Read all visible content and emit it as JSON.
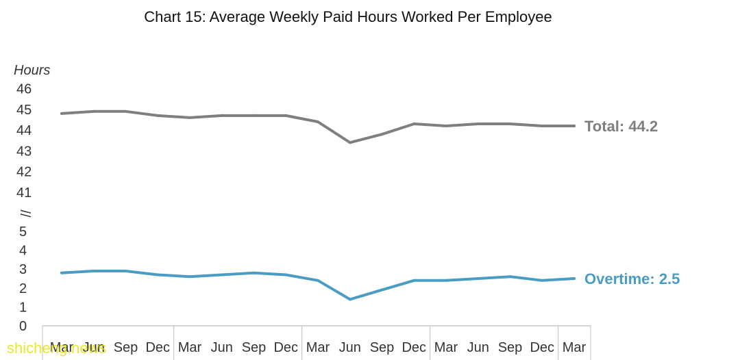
{
  "chart_data": {
    "type": "line",
    "title": "Chart 15: Average Weekly Paid Hours Worked Per Employee",
    "ylabel": "Hours",
    "xlabel": "",
    "axis_break": true,
    "y_ticks_lower": [
      "0",
      "1",
      "2",
      "3",
      "4",
      "5"
    ],
    "y_ticks_upper": [
      "41",
      "42",
      "43",
      "44",
      "45",
      "46"
    ],
    "y_break_marker": "//",
    "x_categories": [
      "Mar",
      "Jun",
      "Sep",
      "Dec",
      "Mar",
      "Jun",
      "Sep",
      "Dec",
      "Mar",
      "Jun",
      "Sep",
      "Dec",
      "Mar",
      "Jun",
      "Sep",
      "Dec",
      "Mar"
    ],
    "series": [
      {
        "name": "Total",
        "label": "Total: 44.2",
        "color": "#7f7f7f",
        "values": [
          44.8,
          44.9,
          44.9,
          44.7,
          44.6,
          44.7,
          44.7,
          44.7,
          44.4,
          43.4,
          43.8,
          44.3,
          44.2,
          44.3,
          44.3,
          44.2,
          44.2
        ]
      },
      {
        "name": "Overtime",
        "label": "Overtime: 2.5",
        "color": "#4a9cc4",
        "values": [
          2.8,
          2.9,
          2.9,
          2.7,
          2.6,
          2.7,
          2.8,
          2.7,
          2.4,
          1.4,
          1.9,
          2.4,
          2.4,
          2.5,
          2.6,
          2.4,
          2.5
        ]
      }
    ],
    "grid": false,
    "legend": "inline-right"
  },
  "watermark": "shicheng.news"
}
